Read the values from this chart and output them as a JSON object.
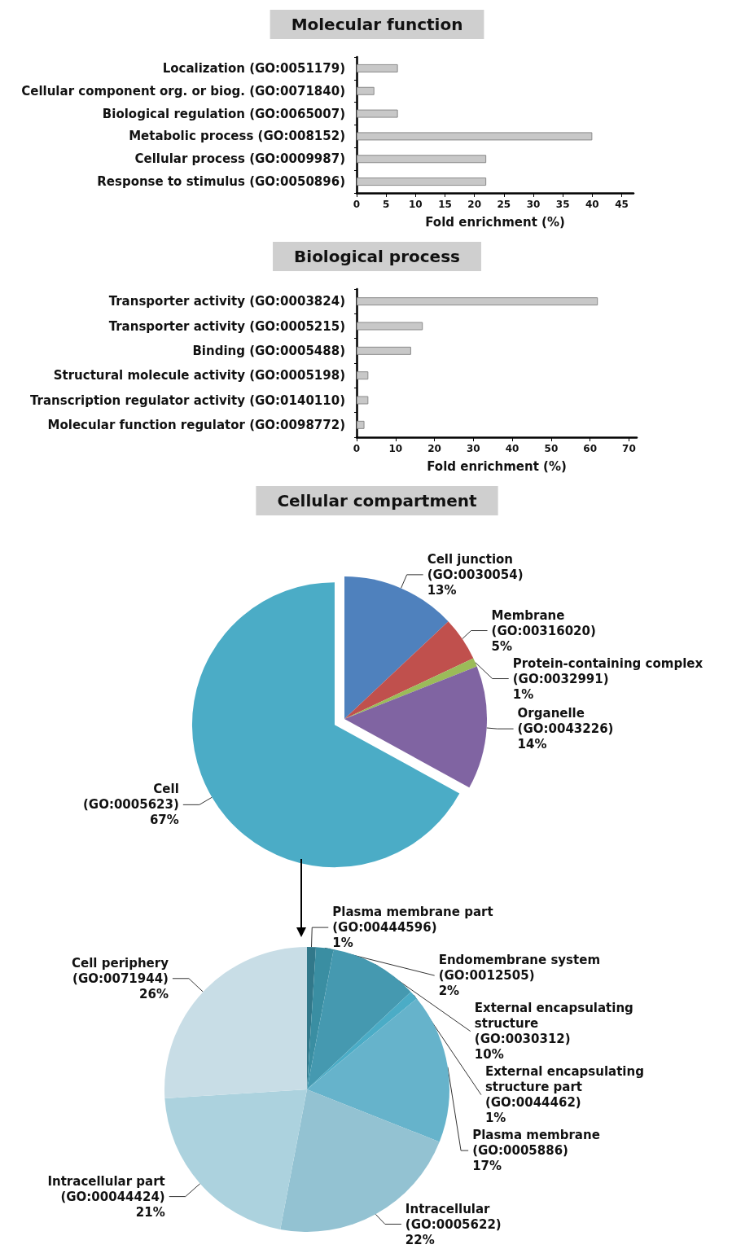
{
  "chart_data": [
    {
      "type": "bar",
      "title": "Molecular function",
      "orientation": "horizontal",
      "xlabel": "Fold enrichment (%)",
      "categories": [
        "Localization (GO:0051179)",
        "Cellular component org. or biog. (GO:0071840)",
        "Biological regulation (GO:0065007)",
        "Metabolic process (GO:008152)",
        "Cellular process (GO:0009987)",
        "Response to stimulus (GO:0050896)"
      ],
      "values": [
        7,
        3,
        7,
        40,
        22,
        22
      ],
      "color": "#c8c8c8",
      "xlim": [
        0,
        47
      ],
      "xticks": [
        0,
        5,
        10,
        15,
        20,
        25,
        30,
        35,
        40,
        45
      ],
      "grid": false,
      "legend": false
    },
    {
      "type": "bar",
      "title": "Biological process",
      "orientation": "horizontal",
      "xlabel": "Fold enrichment (%)",
      "categories": [
        "Transporter activity (GO:0003824)",
        "Transporter activity (GO:0005215)",
        "Binding (GO:0005488)",
        "Structural molecule activity (GO:0005198)",
        "Transcription regulator activity (GO:0140110)",
        "Molecular function regulator (GO:0098772)"
      ],
      "values": [
        62,
        17,
        14,
        3,
        3,
        2
      ],
      "color": "#c8c8c8",
      "xlim": [
        0,
        72
      ],
      "xticks": [
        0,
        10,
        20,
        30,
        40,
        50,
        60,
        70
      ],
      "grid": false,
      "legend": false
    },
    {
      "type": "pie",
      "title": "Cellular compartment",
      "categories": [
        "Cell junction (GO:0030054)",
        "Membrane (GO:00316020)",
        "Protein-containing complex (GO:0032991)",
        "Organelle (GO:0043226)",
        "Cell (GO:0005623)"
      ],
      "values": [
        13,
        5,
        1,
        14,
        67
      ],
      "value_labels": [
        "13%",
        "5%",
        "1%",
        "14%",
        "67%"
      ],
      "colors": [
        "#4f81bd",
        "#c0504d",
        "#9bbb59",
        "#8064a2",
        "#4bacc6"
      ],
      "legend": false
    },
    {
      "type": "pie",
      "categories": [
        "Plasma membrane part (GO:00444596)",
        "Endomembrane system (GO:0012505)",
        "External encapsulating structure (GO:0030312)",
        "External encapsulating structure part (GO:0044462)",
        "Plasma membrane (GO:0005886)",
        "Intracellular (GO:0005622)",
        "Intracellular part (GO:00044424)",
        "Cell periphery (GO:0071944)"
      ],
      "values": [
        1,
        2,
        10,
        1,
        17,
        22,
        21,
        26
      ],
      "value_labels": [
        "1%",
        "2%",
        "10%",
        "1%",
        "17%",
        "22%",
        "21%",
        "26%"
      ],
      "colors": [
        "#31788a",
        "#3a8ea2",
        "#4599b0",
        "#4bacc6",
        "#66b3cb",
        "#93c2d2",
        "#acd2de",
        "#c8dde6"
      ],
      "legend": false
    }
  ]
}
